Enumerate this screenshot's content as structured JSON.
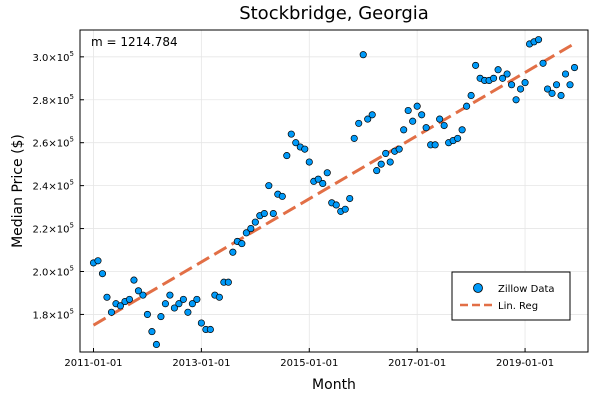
{
  "chart_data": {
    "type": "scatter",
    "title": "Stockbridge, Georgia",
    "xlabel": "Month",
    "ylabel": "Median Price ($)",
    "annotation": "m = 1214.784",
    "x_start": "2011-01",
    "x_ticks": [
      "2011-01-01",
      "2013-01-01",
      "2015-01-01",
      "2017-01-01",
      "2019-01-01"
    ],
    "y_ticks": [
      {
        "value": 180000,
        "base": "1.8×10",
        "exp": "5"
      },
      {
        "value": 200000,
        "base": "2.0×10",
        "exp": "5"
      },
      {
        "value": 220000,
        "base": "2.2×10",
        "exp": "5"
      },
      {
        "value": 240000,
        "base": "2.4×10",
        "exp": "5"
      },
      {
        "value": 260000,
        "base": "2.6×10",
        "exp": "5"
      },
      {
        "value": 280000,
        "base": "2.8×10",
        "exp": "5"
      },
      {
        "value": 300000,
        "base": "3.0×10",
        "exp": "5"
      }
    ],
    "xlim": [
      "2010-10",
      "2020-03"
    ],
    "ylim": [
      162500,
      312500
    ],
    "grid": true,
    "legend_position": "bottom-right",
    "series": [
      {
        "name": "Zillow Data",
        "kind": "scatter",
        "color": "#009af9",
        "dates": [
          "2011-01",
          "2011-02",
          "2011-03",
          "2011-04",
          "2011-05",
          "2011-06",
          "2011-07",
          "2011-08",
          "2011-09",
          "2011-10",
          "2011-11",
          "2011-12",
          "2012-01",
          "2012-02",
          "2012-03",
          "2012-04",
          "2012-05",
          "2012-06",
          "2012-07",
          "2012-08",
          "2012-09",
          "2012-10",
          "2012-11",
          "2012-12",
          "2013-01",
          "2013-02",
          "2013-03",
          "2013-04",
          "2013-05",
          "2013-06",
          "2013-07",
          "2013-08",
          "2013-09",
          "2013-10",
          "2013-11",
          "2013-12",
          "2014-01",
          "2014-02",
          "2014-03",
          "2014-04",
          "2014-05",
          "2014-06",
          "2014-07",
          "2014-08",
          "2014-09",
          "2014-10",
          "2014-11",
          "2014-12",
          "2015-01",
          "2015-02",
          "2015-03",
          "2015-04",
          "2015-05",
          "2015-06",
          "2015-07",
          "2015-08",
          "2015-09",
          "2015-10",
          "2015-11",
          "2015-12",
          "2016-01",
          "2016-02",
          "2016-03",
          "2016-04",
          "2016-05",
          "2016-06",
          "2016-07",
          "2016-08",
          "2016-09",
          "2016-10",
          "2016-11",
          "2016-12",
          "2017-01",
          "2017-02",
          "2017-03",
          "2017-04",
          "2017-05",
          "2017-06",
          "2017-07",
          "2017-08",
          "2017-09",
          "2017-10",
          "2017-11",
          "2017-12",
          "2018-01",
          "2018-02",
          "2018-03",
          "2018-04",
          "2018-05",
          "2018-06",
          "2018-07",
          "2018-08",
          "2018-09",
          "2018-10",
          "2018-11",
          "2018-12",
          "2019-01",
          "2019-02",
          "2019-03",
          "2019-04",
          "2019-05",
          "2019-06",
          "2019-07",
          "2019-08",
          "2019-09",
          "2019-10",
          "2019-11",
          "2019-12"
        ],
        "values": [
          204000,
          205000,
          199000,
          188000,
          181000,
          185000,
          184000,
          186000,
          187000,
          196000,
          191000,
          189000,
          180000,
          172000,
          166000,
          179000,
          185000,
          189000,
          183000,
          185000,
          187000,
          181000,
          185000,
          187000,
          176000,
          173000,
          173000,
          189000,
          188000,
          195000,
          195000,
          209000,
          214000,
          213000,
          218000,
          220000,
          223000,
          226000,
          227000,
          240000,
          227000,
          236000,
          235000,
          254000,
          264000,
          260000,
          258000,
          257000,
          251000,
          242000,
          243000,
          241000,
          246000,
          232000,
          231000,
          228000,
          229000,
          234000,
          262000,
          269000,
          301000,
          271000,
          273000,
          247000,
          250000,
          255000,
          251000,
          256000,
          257000,
          266000,
          275000,
          270000,
          277000,
          273000,
          267000,
          259000,
          259000,
          271000,
          268000,
          260000,
          261000,
          262000,
          266000,
          277000,
          282000,
          296000,
          290000,
          289000,
          289000,
          290000,
          294000,
          290000,
          292000,
          287000,
          280000,
          285000,
          288000,
          306000,
          307000,
          308000,
          297000,
          285000,
          283000,
          287000,
          282000,
          292000,
          287000,
          295000
        ]
      },
      {
        "name": "Lin. Reg",
        "kind": "line",
        "style": "dashed",
        "color": "#e26f46",
        "points": [
          {
            "date": "2011-01",
            "value": 175000
          },
          {
            "date": "2019-12",
            "value": 306200
          }
        ]
      }
    ]
  }
}
